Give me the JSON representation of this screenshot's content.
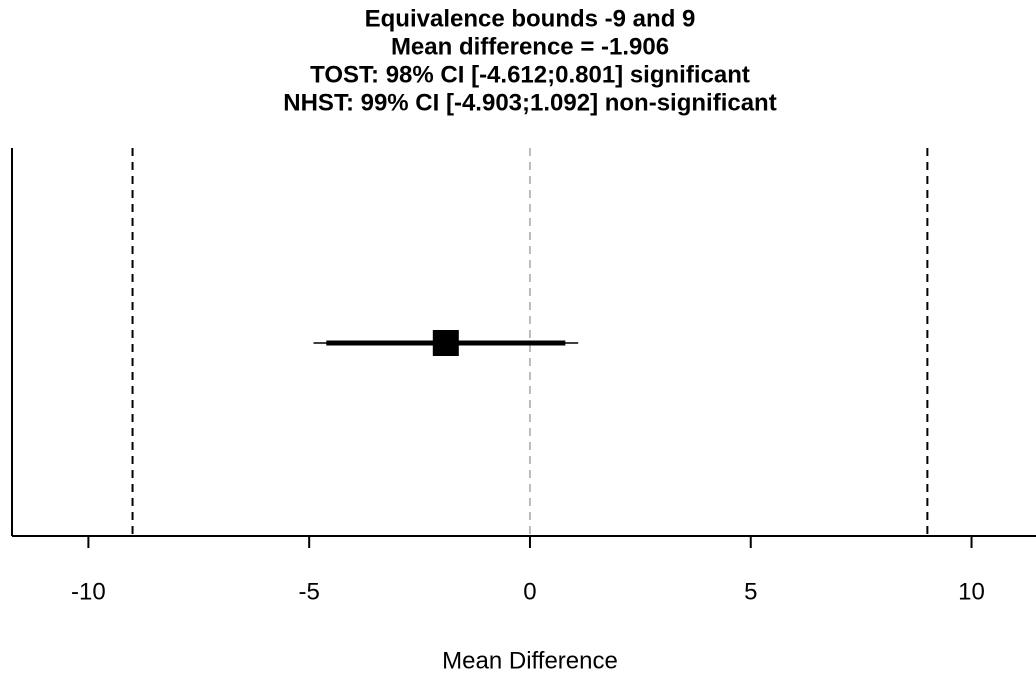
{
  "chart_data": {
    "type": "forest",
    "title": [
      "Equivalence bounds -9 and 9",
      "Mean difference = -1.906",
      "TOST: 98% CI [-4.612;0.801] significant",
      "NHST: 99% CI [-4.903;1.092] non-significant"
    ],
    "x_label": "Mean Difference",
    "xlim": [
      -11.73,
      11.46
    ],
    "xticks": [
      -10,
      -5,
      0,
      5,
      10
    ],
    "estimate": -1.906,
    "ci_98": [
      -4.612,
      0.801
    ],
    "ci_99": [
      -4.903,
      1.092
    ],
    "equivalence_bounds": [
      -9,
      9
    ],
    "reference_line": 0
  }
}
